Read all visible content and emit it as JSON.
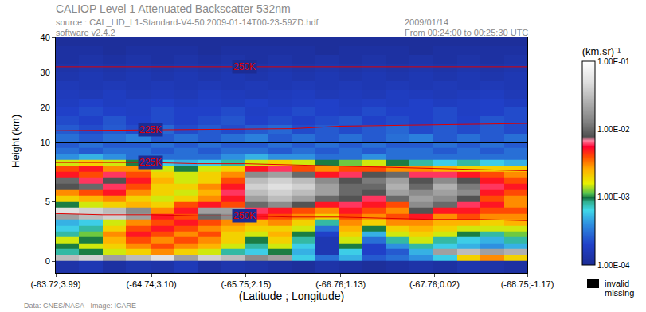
{
  "chart_data": {
    "type": "heatmap",
    "title": "CALIOP Level 1 Attenuated Backscatter 532nm",
    "source": "source : CAL_LID_L1-Standard-V4-50.2009-01-14T00-23-59ZD.hdf",
    "software": "software v2.4.2",
    "date": "2009/01/14",
    "time_span": "From 00:24:00 to 00:25:30 UTC",
    "credit": "Data: CNES/NASA - Image: ICARE",
    "xlabel": "(Latitude ; Longitude)",
    "ylabel": "Height (km)",
    "missing_legend": [
      "invalid",
      "missing"
    ],
    "xlim": [
      -63.72,
      -68.75
    ],
    "xticks": [
      {
        "value": -63.72,
        "label": "(-63.72;3.99)"
      },
      {
        "value": -64.74,
        "label": "(-64.74;3.10)"
      },
      {
        "value": -65.75,
        "label": "(-65.75;2.15)"
      },
      {
        "value": -66.76,
        "label": "(-66.76;1.13)"
      },
      {
        "value": -67.76,
        "label": "(-67.76;0.02)"
      },
      {
        "value": -68.75,
        "label": "(-68.75;-1.17)"
      }
    ],
    "ylim": [
      -1,
      10
    ],
    "yticks": [
      0,
      5,
      10
    ],
    "y2lim": [
      10,
      40
    ],
    "y2ticks": [
      20,
      30,
      40
    ],
    "colorbar": {
      "title": "(km.sr)⁻¹",
      "log": true,
      "range": [
        0.0001,
        0.1
      ],
      "ticks": [
        {
          "value": 0.0001,
          "label": "1.00E-04"
        },
        {
          "value": 0.001,
          "label": "1.00E-03"
        },
        {
          "value": 0.01,
          "label": "1.00E-02"
        },
        {
          "value": 0.1,
          "label": "1.00E-01"
        }
      ]
    },
    "x_edges": [
      -63.72,
      -63.97,
      -64.22,
      -64.47,
      -64.73,
      -64.98,
      -65.23,
      -65.48,
      -65.73,
      -65.98,
      -66.24,
      -66.49,
      -66.74,
      -66.99,
      -67.24,
      -67.49,
      -67.74,
      -68.0,
      -68.25,
      -68.5,
      -68.75
    ],
    "y_edges": [
      -1,
      0,
      0.5,
      1,
      1.5,
      2,
      2.5,
      3,
      3.5,
      4,
      4.5,
      5,
      5.5,
      6,
      6.5,
      7,
      7.5,
      8,
      8.5,
      9,
      9.5,
      10
    ],
    "z": [
      [
        0.00013,
        0.00015,
        0.00012,
        0.00014,
        0.00013,
        0.00016,
        0.00012,
        0.00014,
        0.00013,
        0.00012,
        0.00011,
        0.00013,
        0.00012,
        0.00011,
        0.00012,
        0.00013,
        0.00012,
        0.00014,
        0.00013,
        0.00012
      ],
      [
        0.03,
        0.04,
        0.02,
        0.03,
        0.05,
        0.02,
        0.04,
        0.03,
        0.015,
        0.02,
        0.0006,
        0.0003,
        0.0005,
        0.00025,
        0.0003,
        0.0004,
        0.0006,
        0.002,
        0.003,
        0.002
      ],
      [
        0.0008,
        0.001,
        0.0015,
        0.002,
        0.003,
        0.002,
        0.0015,
        0.0008,
        0.0006,
        0.001,
        0.0005,
        0.00015,
        0.0006,
        0.0002,
        0.00025,
        0.0005,
        0.02,
        0.03,
        0.02,
        0.025
      ],
      [
        0.001,
        0.0015,
        0.002,
        0.003,
        0.004,
        0.003,
        0.0025,
        0.0015,
        0.0008,
        0.0015,
        0.0006,
        0.00015,
        0.001,
        0.0002,
        0.0004,
        0.0008,
        0.0006,
        0.0005,
        0.0004,
        0.0005
      ],
      [
        0.0015,
        0.001,
        0.0025,
        0.004,
        0.003,
        0.004,
        0.003,
        0.002,
        0.001,
        0.002,
        0.0008,
        0.00015,
        0.0015,
        0.0003,
        0.0008,
        0.0015,
        0.0008,
        0.0006,
        0.0005,
        0.0008
      ],
      [
        0.0008,
        0.0012,
        0.003,
        0.005,
        0.004,
        0.003,
        0.004,
        0.002,
        0.0015,
        0.0025,
        0.001,
        0.0002,
        0.002,
        0.0005,
        0.0015,
        0.002,
        0.0015,
        0.001,
        0.0008,
        0.0012
      ],
      [
        0.0006,
        0.0008,
        0.002,
        0.004,
        0.005,
        0.004,
        0.003,
        0.0025,
        0.002,
        0.002,
        0.0015,
        0.0003,
        0.0025,
        0.001,
        0.002,
        0.0025,
        0.002,
        0.0015,
        0.0015,
        0.0015
      ],
      [
        0.0005,
        0.0006,
        0.0015,
        0.003,
        0.004,
        0.005,
        0.004,
        0.003,
        0.0025,
        0.003,
        0.002,
        0.0008,
        0.003,
        0.002,
        0.003,
        0.003,
        0.0025,
        0.0025,
        0.002,
        0.0025
      ],
      [
        0.02,
        0.03,
        0.04,
        0.02,
        0.005,
        0.004,
        0.01,
        0.015,
        0.005,
        0.004,
        0.003,
        0.002,
        0.004,
        0.003,
        0.004,
        0.005,
        0.003,
        0.004,
        0.003,
        0.003
      ],
      [
        0.05,
        0.04,
        0.03,
        0.015,
        0.003,
        0.005,
        0.02,
        0.02,
        0.006,
        0.005,
        0.004,
        0.003,
        0.005,
        0.004,
        0.003,
        0.008,
        0.005,
        0.005,
        0.004,
        0.004
      ],
      [
        0.001,
        0.0015,
        0.002,
        0.0025,
        0.002,
        0.004,
        0.005,
        0.004,
        0.01,
        0.015,
        0.008,
        0.005,
        0.006,
        0.005,
        0.004,
        0.015,
        0.01,
        0.006,
        0.005,
        0.003
      ],
      [
        0.002,
        0.0025,
        0.003,
        0.002,
        0.0015,
        0.002,
        0.003,
        0.005,
        0.02,
        0.03,
        0.02,
        0.01,
        0.008,
        0.006,
        0.01,
        0.02,
        0.015,
        0.008,
        0.004,
        0.003
      ],
      [
        0.003,
        0.004,
        0.005,
        0.003,
        0.002,
        0.0015,
        0.0025,
        0.006,
        0.03,
        0.04,
        0.03,
        0.02,
        0.01,
        0.008,
        0.02,
        0.015,
        0.02,
        0.015,
        0.005,
        0.004
      ],
      [
        0.008,
        0.01,
        0.006,
        0.004,
        0.002,
        0.002,
        0.003,
        0.005,
        0.04,
        0.05,
        0.04,
        0.02,
        0.01,
        0.01,
        0.025,
        0.01,
        0.025,
        0.012,
        0.006,
        0.005
      ],
      [
        0.01,
        0.006,
        0.008,
        0.005,
        0.0025,
        0.0015,
        0.002,
        0.004,
        0.03,
        0.04,
        0.03,
        0.015,
        0.008,
        0.012,
        0.02,
        0.008,
        0.015,
        0.008,
        0.005,
        0.004
      ],
      [
        0.005,
        0.004,
        0.006,
        0.004,
        0.002,
        0.0015,
        0.002,
        0.003,
        0.015,
        0.02,
        0.01,
        0.005,
        0.006,
        0.008,
        0.01,
        0.006,
        0.006,
        0.005,
        0.004,
        0.003
      ],
      [
        0.004,
        0.005,
        0.003,
        0.003,
        0.0015,
        0.001,
        0.0015,
        0.002,
        0.005,
        0.006,
        0.004,
        0.003,
        0.004,
        0.004,
        0.003,
        0.003,
        0.0025,
        0.002,
        0.002,
        0.002
      ],
      [
        0.0015,
        0.002,
        0.0015,
        0.001,
        0.0006,
        0.0005,
        0.0006,
        0.0008,
        0.0015,
        0.002,
        0.0015,
        0.001,
        0.0012,
        0.0015,
        0.001,
        0.0008,
        0.0006,
        0.0008,
        0.0006,
        0.0005
      ],
      [
        0.0004,
        0.0005,
        0.0004,
        0.0003,
        0.0003,
        0.0003,
        0.0003,
        0.0004,
        0.0005,
        0.0004,
        0.0004,
        0.0003,
        0.0003,
        0.0004,
        0.0003,
        0.0003,
        0.0003,
        0.0003,
        0.0003,
        0.0003
      ],
      [
        0.0003,
        0.00025,
        0.0003,
        0.0003,
        0.00025,
        0.0003,
        0.00025,
        0.0003,
        0.0003,
        0.00025,
        0.0003,
        0.00025,
        0.0003,
        0.00025,
        0.0003,
        0.0003,
        0.00025,
        0.0003,
        0.00025,
        0.0003
      ],
      [
        0.00025,
        0.0003,
        0.00025,
        0.00025,
        0.0003,
        0.00025,
        0.0003,
        0.00025,
        0.00025,
        0.0003,
        0.00025,
        0.0003,
        0.00025,
        0.0003,
        0.00025,
        0.00025,
        0.0003,
        0.00025,
        0.0003,
        0.00025
      ]
    ],
    "y2_edges": [
      10,
      12.5,
      15,
      17.5,
      20,
      22.5,
      25,
      27.5,
      30,
      32.5,
      35,
      37.5,
      40
    ],
    "z2": [
      [
        0.0003,
        0.00025,
        0.0003,
        0.00035,
        0.00025,
        0.0003,
        0.00025,
        0.0003,
        0.00035,
        0.00025,
        0.0003,
        0.00025,
        0.0003,
        0.00025,
        0.0003,
        0.00035,
        0.00025,
        0.0003,
        0.00025,
        0.0003
      ],
      [
        0.00025,
        0.00022,
        0.00025,
        0.00022,
        0.00028,
        0.00022,
        0.00025,
        0.00022,
        0.00025,
        0.00028,
        0.00022,
        0.00025,
        0.00022,
        0.00025,
        0.00028,
        0.00022,
        0.00025,
        0.00022,
        0.00025,
        0.00022
      ],
      [
        0.00022,
        0.0002,
        0.00024,
        0.0002,
        0.00022,
        0.0002,
        0.00022,
        0.00024,
        0.0002,
        0.00022,
        0.0002,
        0.00022,
        0.00024,
        0.0002,
        0.00022,
        0.0002,
        0.00022,
        0.0002,
        0.00024,
        0.00022
      ],
      [
        0.0002,
        0.00022,
        0.0002,
        0.00019,
        0.00022,
        0.0002,
        0.0002,
        0.00022,
        0.00019,
        0.0002,
        0.00022,
        0.0002,
        0.00019,
        0.00022,
        0.0002,
        0.0002,
        0.00022,
        0.00019,
        0.0002,
        0.00022
      ],
      [
        0.00018,
        0.0002,
        0.00018,
        0.00019,
        0.0002,
        0.00018,
        0.00019,
        0.00018,
        0.0002,
        0.00018,
        0.00019,
        0.0002,
        0.00018,
        0.00019,
        0.00018,
        0.0002,
        0.00018,
        0.00019,
        0.0002,
        0.00018
      ],
      [
        0.00017,
        0.00016,
        0.00018,
        0.00016,
        0.00017,
        0.00016,
        0.00018,
        0.00017,
        0.00016,
        0.00017,
        0.00018,
        0.00016,
        0.00017,
        0.00016,
        0.00018,
        0.00017,
        0.00016,
        0.00017,
        0.00018,
        0.00016
      ],
      [
        0.00016,
        0.00015,
        0.00016,
        0.00015,
        0.00016,
        0.00015,
        0.00016,
        0.00015,
        0.00016,
        0.00015,
        0.00016,
        0.00015,
        0.00016,
        0.00015,
        0.00016,
        0.00015,
        0.00016,
        0.00015,
        0.00016,
        0.00015
      ],
      [
        0.00014,
        0.00015,
        0.00014,
        0.00015,
        0.00014,
        0.00015,
        0.00014,
        0.00015,
        0.00014,
        0.00015,
        0.00014,
        0.00015,
        0.00014,
        0.00015,
        0.00014,
        0.00015,
        0.00014,
        0.00015,
        0.00014,
        0.00015
      ],
      [
        0.00013,
        0.00014,
        0.00013,
        0.00014,
        0.00013,
        0.00014,
        0.00013,
        0.00014,
        0.00013,
        0.00014,
        0.00013,
        0.00014,
        0.00013,
        0.00014,
        0.00013,
        0.00014,
        0.00013,
        0.00014,
        0.00013,
        0.00014
      ],
      [
        0.00012,
        0.00013,
        0.00012,
        0.00013,
        0.00012,
        0.00013,
        0.00012,
        0.00013,
        0.00012,
        0.00013,
        0.00012,
        0.00013,
        0.00012,
        0.00013,
        0.00012,
        0.00013,
        0.00012,
        0.00013,
        0.00012,
        0.00013
      ],
      [
        0.00012,
        0.00012,
        0.00011,
        0.00012,
        0.00012,
        0.00012,
        0.00011,
        0.00012,
        0.00012,
        0.00012,
        0.00012,
        0.00011,
        0.00012,
        0.00012,
        0.00012,
        0.00011,
        0.00012,
        0.00012,
        0.00012,
        0.00012
      ],
      [
        0.00011,
        0.00011,
        0.00011,
        0.00011,
        0.00011,
        0.00011,
        0.00011,
        0.00011,
        0.00011,
        0.00011,
        0.00011,
        0.00011,
        0.00011,
        0.00011,
        0.00011,
        0.00011,
        0.00011,
        0.00011,
        0.00011,
        0.00011
      ]
    ],
    "temperature_lines": [
      {
        "label": "250K",
        "color": "#e00000",
        "x": [
          -63.72,
          -64.22,
          -64.73,
          -65.23,
          -65.73,
          -66.24,
          -66.74,
          -67.24,
          -67.74,
          -68.25,
          -68.75
        ],
        "y": [
          31.6,
          31.6,
          31.6,
          31.6,
          31.6,
          31.6,
          31.6,
          31.6,
          31.6,
          31.6,
          31.6
        ]
      },
      {
        "label": "225K",
        "color": "#e00000",
        "x": [
          -63.72,
          -64.22,
          -64.73,
          -65.23,
          -65.73,
          -66.24,
          -66.74,
          -67.24,
          -67.74,
          -68.25,
          -68.75
        ],
        "y": [
          13.3,
          13.4,
          13.5,
          13.6,
          13.7,
          13.9,
          14.6,
          14.8,
          15.0,
          15.2,
          15.4
        ]
      },
      {
        "label": "225K",
        "color": "#e00000",
        "x": [
          -63.72,
          -64.22,
          -64.73,
          -65.23,
          -65.73,
          -66.24,
          -66.74,
          -67.24,
          -67.74,
          -68.25,
          -68.75
        ],
        "y": [
          8.3,
          8.3,
          8.3,
          8.2,
          8.2,
          8.1,
          8.0,
          7.9,
          7.8,
          7.7,
          7.6
        ]
      },
      {
        "label": "250K",
        "color": "#e00000",
        "x": [
          -63.72,
          -64.22,
          -64.73,
          -65.23,
          -65.73,
          -66.24,
          -66.74,
          -67.24,
          -67.74,
          -68.25,
          -68.75
        ],
        "y": [
          4.0,
          3.9,
          3.9,
          3.8,
          3.8,
          3.7,
          3.7,
          3.6,
          3.5,
          3.5,
          3.4
        ]
      }
    ]
  }
}
